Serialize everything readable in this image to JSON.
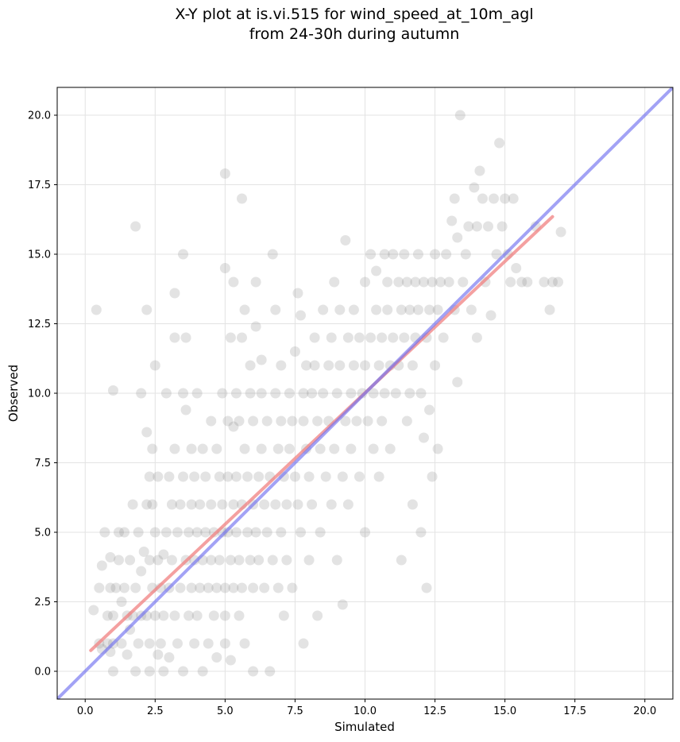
{
  "chart_data": {
    "type": "scatter",
    "title_lines": [
      "X-Y plot at is.vi.515 for wind_speed_at_10m_agl",
      "from 24-30h during autumn"
    ],
    "xlabel": "Simulated",
    "ylabel": "Observed",
    "xlim": [
      -1,
      21
    ],
    "ylim": [
      -1,
      21
    ],
    "xticks": [
      0.0,
      2.5,
      5.0,
      7.5,
      10.0,
      12.5,
      15.0,
      17.5,
      20.0
    ],
    "yticks": [
      0.0,
      2.5,
      5.0,
      7.5,
      10.0,
      12.5,
      15.0,
      17.5,
      20.0
    ],
    "xtick_labels": [
      "0.0",
      "2.5",
      "5.0",
      "7.5",
      "10.0",
      "12.5",
      "15.0",
      "17.5",
      "20.0"
    ],
    "ytick_labels": [
      "0.0",
      "2.5",
      "5.0",
      "7.5",
      "10.0",
      "12.5",
      "15.0",
      "17.5",
      "20.0"
    ],
    "grid": true,
    "point_color": "#808080",
    "point_opacity": 0.22,
    "fit_line": {
      "color": "#f08080",
      "x": [
        0.2,
        16.7
      ],
      "y": [
        0.75,
        16.35
      ]
    },
    "identity_line": {
      "color": "#7070f0",
      "x": [
        -1,
        21
      ],
      "y": [
        -1,
        21
      ]
    },
    "series": [
      {
        "points": [
          [
            0.3,
            2.2
          ],
          [
            0.4,
            13
          ],
          [
            0.5,
            3
          ],
          [
            0.5,
            1
          ],
          [
            0.6,
            3.8
          ],
          [
            0.6,
            0.8
          ],
          [
            0.7,
            5
          ],
          [
            0.8,
            2
          ],
          [
            0.8,
            1
          ],
          [
            0.9,
            4.1
          ],
          [
            0.9,
            3
          ],
          [
            0.9,
            0.7
          ],
          [
            1.0,
            10.1
          ],
          [
            1.0,
            1
          ],
          [
            1.0,
            2
          ],
          [
            1.0,
            0
          ],
          [
            1.1,
            3
          ],
          [
            1.2,
            4
          ],
          [
            1.2,
            5
          ],
          [
            1.3,
            2.5
          ],
          [
            1.3,
            1
          ],
          [
            1.4,
            3
          ],
          [
            1.4,
            5
          ],
          [
            1.5,
            2
          ],
          [
            1.5,
            0.6
          ],
          [
            1.6,
            1.5
          ],
          [
            1.6,
            4
          ],
          [
            1.7,
            6
          ],
          [
            1.7,
            2
          ],
          [
            1.8,
            16
          ],
          [
            1.8,
            3
          ],
          [
            1.8,
            0
          ],
          [
            1.9,
            5
          ],
          [
            1.9,
            1
          ],
          [
            2.0,
            10
          ],
          [
            2.0,
            3.6
          ],
          [
            2.0,
            2
          ],
          [
            2.1,
            4.3
          ],
          [
            2.2,
            6
          ],
          [
            2.2,
            13
          ],
          [
            2.2,
            8.6
          ],
          [
            2.2,
            2
          ],
          [
            2.3,
            7
          ],
          [
            2.3,
            4
          ],
          [
            2.3,
            1
          ],
          [
            2.3,
            0
          ],
          [
            2.4,
            3
          ],
          [
            2.4,
            8
          ],
          [
            2.4,
            6
          ],
          [
            2.5,
            11
          ],
          [
            2.5,
            5
          ],
          [
            2.5,
            2
          ],
          [
            2.6,
            7
          ],
          [
            2.6,
            4
          ],
          [
            2.6,
            0.6
          ],
          [
            2.7,
            3
          ],
          [
            2.7,
            1
          ],
          [
            2.8,
            4.2
          ],
          [
            2.8,
            2
          ],
          [
            2.8,
            0
          ],
          [
            2.9,
            10
          ],
          [
            2.9,
            5
          ],
          [
            3.0,
            7
          ],
          [
            3.0,
            3
          ],
          [
            3.0,
            0.5
          ],
          [
            3.1,
            6
          ],
          [
            3.1,
            4
          ],
          [
            3.2,
            13.6
          ],
          [
            3.2,
            12
          ],
          [
            3.2,
            8
          ],
          [
            3.2,
            2
          ],
          [
            3.3,
            5
          ],
          [
            3.3,
            1
          ],
          [
            3.4,
            6
          ],
          [
            3.4,
            3
          ],
          [
            3.5,
            15
          ],
          [
            3.5,
            10
          ],
          [
            3.5,
            7
          ],
          [
            3.5,
            0
          ],
          [
            3.6,
            4
          ],
          [
            3.6,
            12
          ],
          [
            3.6,
            9.4
          ],
          [
            3.7,
            5
          ],
          [
            3.7,
            2
          ],
          [
            3.8,
            8
          ],
          [
            3.8,
            6
          ],
          [
            3.8,
            3
          ],
          [
            3.9,
            7
          ],
          [
            3.9,
            4
          ],
          [
            3.9,
            1
          ],
          [
            4.0,
            5
          ],
          [
            4.0,
            10
          ],
          [
            4.0,
            2
          ],
          [
            4.1,
            6
          ],
          [
            4.1,
            3
          ],
          [
            4.2,
            8
          ],
          [
            4.2,
            4
          ],
          [
            4.2,
            0
          ],
          [
            4.3,
            5
          ],
          [
            4.3,
            7
          ],
          [
            4.4,
            3
          ],
          [
            4.4,
            1
          ],
          [
            4.5,
            6
          ],
          [
            4.5,
            9
          ],
          [
            4.5,
            4
          ],
          [
            4.6,
            5
          ],
          [
            4.6,
            2
          ],
          [
            4.7,
            8
          ],
          [
            4.7,
            3
          ],
          [
            4.7,
            0.5
          ],
          [
            4.8,
            7
          ],
          [
            4.8,
            4
          ],
          [
            4.9,
            5
          ],
          [
            4.9,
            10
          ],
          [
            4.9,
            6
          ],
          [
            5.0,
            2
          ],
          [
            5.0,
            17.9
          ],
          [
            5.0,
            14.5
          ],
          [
            5.0,
            3
          ],
          [
            5.0,
            1
          ],
          [
            5.1,
            5
          ],
          [
            5.1,
            7
          ],
          [
            5.1,
            9
          ],
          [
            5.2,
            4
          ],
          [
            5.2,
            12
          ],
          [
            5.2,
            0.4
          ],
          [
            5.3,
            6
          ],
          [
            5.3,
            3
          ],
          [
            5.3,
            8.8
          ],
          [
            5.3,
            14
          ],
          [
            5.4,
            5
          ],
          [
            5.4,
            10
          ],
          [
            5.4,
            7
          ],
          [
            5.5,
            4
          ],
          [
            5.5,
            9
          ],
          [
            5.5,
            2
          ],
          [
            5.6,
            6
          ],
          [
            5.6,
            17
          ],
          [
            5.6,
            12
          ],
          [
            5.6,
            3
          ],
          [
            5.7,
            13
          ],
          [
            5.7,
            8
          ],
          [
            5.7,
            1
          ],
          [
            5.8,
            5
          ],
          [
            5.8,
            7
          ],
          [
            5.9,
            4
          ],
          [
            5.9,
            11
          ],
          [
            5.9,
            10
          ],
          [
            6.0,
            6
          ],
          [
            6.0,
            3
          ],
          [
            6.0,
            9
          ],
          [
            6.0,
            0
          ],
          [
            6.1,
            14
          ],
          [
            6.1,
            5
          ],
          [
            6.1,
            12.4
          ],
          [
            6.2,
            7
          ],
          [
            6.2,
            4
          ],
          [
            6.3,
            8
          ],
          [
            6.3,
            11.2
          ],
          [
            6.3,
            10
          ],
          [
            6.4,
            6
          ],
          [
            6.4,
            3
          ],
          [
            6.5,
            9
          ],
          [
            6.5,
            5
          ],
          [
            6.6,
            7
          ],
          [
            6.6,
            0
          ],
          [
            6.7,
            4
          ],
          [
            6.7,
            15
          ],
          [
            6.8,
            10
          ],
          [
            6.8,
            6
          ],
          [
            6.8,
            13
          ],
          [
            6.9,
            8
          ],
          [
            6.9,
            3
          ],
          [
            7.0,
            9
          ],
          [
            7.0,
            5
          ],
          [
            7.0,
            11
          ],
          [
            7.1,
            7
          ],
          [
            7.1,
            2
          ],
          [
            7.2,
            6
          ],
          [
            7.2,
            4
          ],
          [
            7.3,
            10
          ],
          [
            7.3,
            8
          ],
          [
            7.4,
            9
          ],
          [
            7.4,
            3
          ],
          [
            7.5,
            11.5
          ],
          [
            7.5,
            7
          ],
          [
            7.6,
            6
          ],
          [
            7.6,
            13.6
          ],
          [
            7.7,
            5
          ],
          [
            7.7,
            12.8
          ],
          [
            7.8,
            9
          ],
          [
            7.8,
            10
          ],
          [
            7.8,
            1
          ],
          [
            7.9,
            11
          ],
          [
            7.9,
            8
          ],
          [
            8.0,
            7
          ],
          [
            8.0,
            4
          ],
          [
            8.1,
            10
          ],
          [
            8.1,
            6
          ],
          [
            8.2,
            11
          ],
          [
            8.2,
            12
          ],
          [
            8.3,
            9
          ],
          [
            8.3,
            2
          ],
          [
            8.4,
            8
          ],
          [
            8.4,
            5
          ],
          [
            8.5,
            10
          ],
          [
            8.5,
            13
          ],
          [
            8.6,
            7
          ],
          [
            8.7,
            11
          ],
          [
            8.7,
            9
          ],
          [
            8.8,
            12
          ],
          [
            8.8,
            6
          ],
          [
            8.9,
            8
          ],
          [
            8.9,
            14
          ],
          [
            9.0,
            10
          ],
          [
            9.0,
            4
          ],
          [
            9.1,
            13
          ],
          [
            9.1,
            11
          ],
          [
            9.2,
            7
          ],
          [
            9.2,
            2.4
          ],
          [
            9.3,
            9
          ],
          [
            9.3,
            15.5
          ],
          [
            9.4,
            12
          ],
          [
            9.4,
            6
          ],
          [
            9.5,
            10
          ],
          [
            9.5,
            8
          ],
          [
            9.6,
            13
          ],
          [
            9.6,
            11
          ],
          [
            9.7,
            9
          ],
          [
            9.8,
            12
          ],
          [
            9.8,
            7
          ],
          [
            9.9,
            10
          ],
          [
            10.0,
            14
          ],
          [
            10.0,
            11
          ],
          [
            10.0,
            5
          ],
          [
            10.1,
            9
          ],
          [
            10.2,
            12
          ],
          [
            10.2,
            15
          ],
          [
            10.3,
            8
          ],
          [
            10.3,
            10
          ],
          [
            10.4,
            13
          ],
          [
            10.4,
            14.4
          ],
          [
            10.5,
            11
          ],
          [
            10.5,
            7
          ],
          [
            10.6,
            12
          ],
          [
            10.6,
            9
          ],
          [
            10.7,
            15
          ],
          [
            10.7,
            10
          ],
          [
            10.8,
            13
          ],
          [
            10.8,
            14
          ],
          [
            10.9,
            11
          ],
          [
            10.9,
            8
          ],
          [
            11.0,
            12
          ],
          [
            11.0,
            15
          ],
          [
            11.1,
            10
          ],
          [
            11.2,
            14
          ],
          [
            11.2,
            11
          ],
          [
            11.3,
            13
          ],
          [
            11.3,
            4
          ],
          [
            11.4,
            15
          ],
          [
            11.4,
            12
          ],
          [
            11.5,
            14
          ],
          [
            11.5,
            9
          ],
          [
            11.6,
            13
          ],
          [
            11.6,
            10
          ],
          [
            11.7,
            11
          ],
          [
            11.7,
            6
          ],
          [
            11.8,
            14
          ],
          [
            11.8,
            12
          ],
          [
            11.9,
            15
          ],
          [
            11.9,
            13
          ],
          [
            12.0,
            10
          ],
          [
            12.0,
            5
          ],
          [
            12.1,
            14
          ],
          [
            12.1,
            8.4
          ],
          [
            12.2,
            12
          ],
          [
            12.2,
            3
          ],
          [
            12.3,
            13
          ],
          [
            12.3,
            9.4
          ],
          [
            12.4,
            14
          ],
          [
            12.4,
            7
          ],
          [
            12.5,
            15
          ],
          [
            12.5,
            11
          ],
          [
            12.6,
            13
          ],
          [
            12.6,
            8
          ],
          [
            12.7,
            14
          ],
          [
            12.8,
            12
          ],
          [
            12.9,
            15
          ],
          [
            13.0,
            14
          ],
          [
            13.1,
            16.2
          ],
          [
            13.2,
            17
          ],
          [
            13.2,
            13
          ],
          [
            13.3,
            15.6
          ],
          [
            13.3,
            10.4
          ],
          [
            13.4,
            20
          ],
          [
            13.5,
            14
          ],
          [
            13.6,
            15
          ],
          [
            13.7,
            16
          ],
          [
            13.8,
            13
          ],
          [
            13.9,
            17.4
          ],
          [
            14.0,
            12
          ],
          [
            14.0,
            16
          ],
          [
            14.1,
            18
          ],
          [
            14.2,
            17
          ],
          [
            14.3,
            14
          ],
          [
            14.4,
            16
          ],
          [
            14.5,
            12.8
          ],
          [
            14.6,
            17
          ],
          [
            14.7,
            15
          ],
          [
            14.8,
            19
          ],
          [
            14.9,
            16
          ],
          [
            15.0,
            17
          ],
          [
            15.1,
            15
          ],
          [
            15.2,
            14
          ],
          [
            15.3,
            17
          ],
          [
            15.4,
            14.5
          ],
          [
            15.6,
            14
          ],
          [
            15.8,
            14
          ],
          [
            16.1,
            16
          ],
          [
            16.4,
            14
          ],
          [
            16.6,
            13
          ],
          [
            16.7,
            14
          ],
          [
            16.9,
            14
          ],
          [
            17.0,
            15.8
          ]
        ]
      }
    ]
  }
}
